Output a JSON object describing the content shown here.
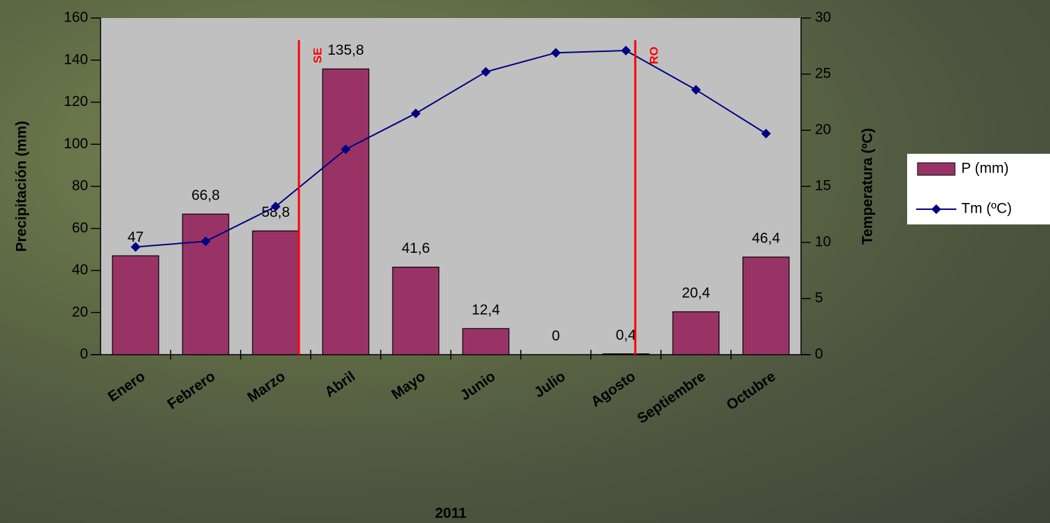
{
  "chart_data": {
    "type": "bar-line",
    "x_title": "2011",
    "y_title": "Precipitación (mm)",
    "y2_title": "Temperatura (ºC)",
    "categories": [
      "Enero",
      "Febrero",
      "Marzo",
      "Abril",
      "Mayo",
      "Junio",
      "Julio",
      "Agosto",
      "Septiembre",
      "Octubre"
    ],
    "series": [
      {
        "name": "P (mm)",
        "type": "bar",
        "color": "#993366",
        "values": [
          47,
          66.8,
          58.8,
          135.8,
          41.6,
          12.4,
          0,
          0.4,
          20.4,
          46.4
        ],
        "value_labels": [
          "47",
          "66,8",
          "58,8",
          "135,8",
          "41,6",
          "12,4",
          "0",
          "0,4",
          "20,4",
          "46,4"
        ]
      },
      {
        "name": "Tm (ºC)",
        "type": "line",
        "axis": "y2",
        "color": "#000080",
        "values": [
          9.6,
          10.1,
          13.2,
          18.3,
          21.5,
          25.2,
          26.9,
          27.1,
          23.6,
          19.7
        ]
      }
    ],
    "ylim": [
      0,
      160
    ],
    "yticks": [
      0,
      20,
      40,
      60,
      80,
      100,
      120,
      140,
      160
    ],
    "y2lim": [
      0,
      30
    ],
    "y2ticks": [
      0,
      5,
      10,
      15,
      20,
      25,
      30
    ],
    "annotations": [
      "SE",
      "RO"
    ],
    "legend": "right"
  }
}
